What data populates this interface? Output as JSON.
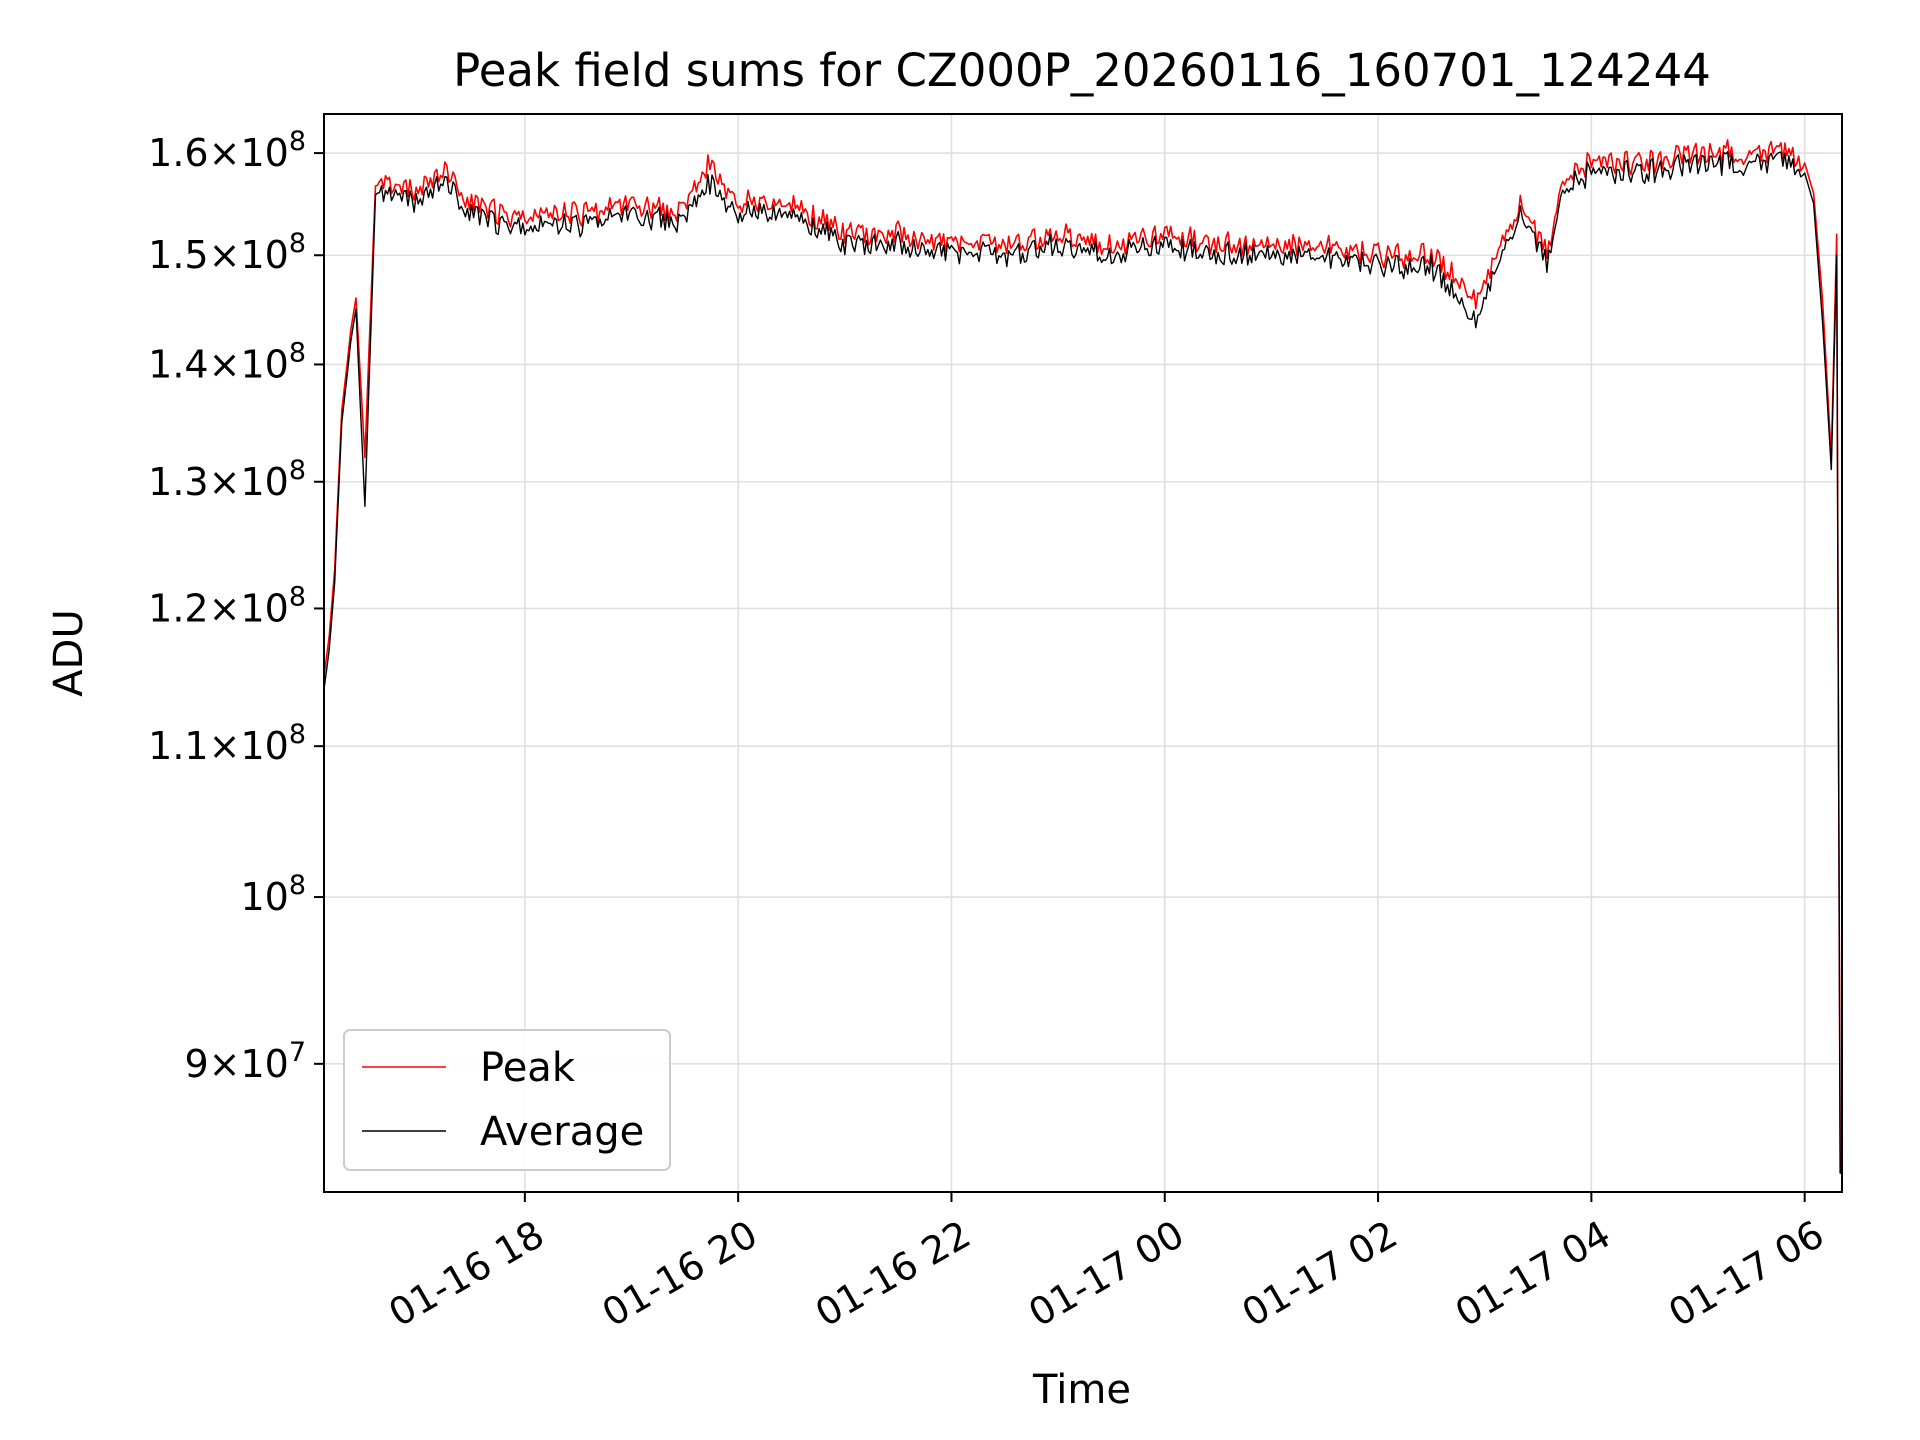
{
  "chart_data": {
    "type": "line",
    "title": "Peak field sums for CZ000P_20260116_160701_124244",
    "xlabel": "Time",
    "ylabel": "ADU",
    "y_scale": "log",
    "ylim": [
      83000000,
      164000000
    ],
    "xlim": [
      "2026-01-16 16:07",
      "2026-01-17 06:21"
    ],
    "grid": true,
    "legend_position": "lower left",
    "x_ticks": [
      {
        "value": "2026-01-16 18:00",
        "label": "01-16 18"
      },
      {
        "value": "2026-01-16 20:00",
        "label": "01-16 20"
      },
      {
        "value": "2026-01-16 22:00",
        "label": "01-16 22"
      },
      {
        "value": "2026-01-17 00:00",
        "label": "01-17 00"
      },
      {
        "value": "2026-01-17 02:00",
        "label": "01-17 02"
      },
      {
        "value": "2026-01-17 04:00",
        "label": "01-17 04"
      },
      {
        "value": "2026-01-17 06:00",
        "label": "01-17 06"
      }
    ],
    "y_ticks": [
      {
        "value": 90000000,
        "mant": "9",
        "exp": "7"
      },
      {
        "value": 100000000,
        "mant": "",
        "exp": "8"
      },
      {
        "value": 110000000,
        "mant": "1.1",
        "exp": "8"
      },
      {
        "value": 120000000,
        "mant": "1.2",
        "exp": "8"
      },
      {
        "value": 130000000,
        "mant": "1.3",
        "exp": "8"
      },
      {
        "value": 140000000,
        "mant": "1.4",
        "exp": "8"
      },
      {
        "value": 150000000,
        "mant": "1.5",
        "exp": "8"
      },
      {
        "value": 160000000,
        "mant": "1.6",
        "exp": "8"
      }
    ],
    "x": [
      "2026-01-16 16:07",
      "2026-01-16 16:10",
      "2026-01-16 16:13",
      "2026-01-16 16:17",
      "2026-01-16 16:20",
      "2026-01-16 16:22",
      "2026-01-16 16:25",
      "2026-01-16 16:30",
      "2026-01-16 16:36",
      "2026-01-16 16:45",
      "2026-01-16 17:00",
      "2026-01-16 17:15",
      "2026-01-16 17:30",
      "2026-01-16 17:45",
      "2026-01-16 18:00",
      "2026-01-16 18:30",
      "2026-01-16 19:00",
      "2026-01-16 19:30",
      "2026-01-16 19:43",
      "2026-01-16 20:00",
      "2026-01-16 20:30",
      "2026-01-16 21:00",
      "2026-01-16 21:30",
      "2026-01-16 22:00",
      "2026-01-16 22:30",
      "2026-01-16 23:00",
      "2026-01-16 23:30",
      "2026-01-17 00:00",
      "2026-01-17 00:30",
      "2026-01-17 01:00",
      "2026-01-17 01:30",
      "2026-01-17 02:00",
      "2026-01-17 02:30",
      "2026-01-17 02:55",
      "2026-01-17 03:10",
      "2026-01-17 03:20",
      "2026-01-17 03:35",
      "2026-01-17 03:45",
      "2026-01-17 04:00",
      "2026-01-17 04:30",
      "2026-01-17 05:00",
      "2026-01-17 05:30",
      "2026-01-17 05:50",
      "2026-01-17 06:00",
      "2026-01-17 06:05",
      "2026-01-17 06:10",
      "2026-01-17 06:15",
      "2026-01-17 06:18",
      "2026-01-17 06:20",
      "2026-01-17 06:21"
    ],
    "series": [
      {
        "name": "Peak",
        "color": "#ff0000",
        "values": [
          115000000,
          118000000,
          123000000,
          136000000,
          140000000,
          143000000,
          146000000,
          132000000,
          157000000,
          157000000,
          156000000,
          158000000,
          155000000,
          154000000,
          154000000,
          154000000,
          155000000,
          154000000,
          159000000,
          155000000,
          155000000,
          152000000,
          152000000,
          151000000,
          151000000,
          152000000,
          151000000,
          152000000,
          151000000,
          151000000,
          151000000,
          150000000,
          150000000,
          146000000,
          151000000,
          155000000,
          150000000,
          158000000,
          159000000,
          159000000,
          160000000,
          160000000,
          160000000,
          159000000,
          156000000,
          146000000,
          132000000,
          152000000,
          84000000,
          85000000
        ]
      },
      {
        "name": "Average",
        "color": "#000000",
        "values": [
          114000000,
          117000000,
          122000000,
          135000000,
          139000000,
          142000000,
          145000000,
          128000000,
          156000000,
          156000000,
          155000000,
          157000000,
          154000000,
          153000000,
          153000000,
          153000000,
          154000000,
          153000000,
          157000000,
          154000000,
          154000000,
          151000000,
          151000000,
          150000000,
          150000000,
          151000000,
          150000000,
          151000000,
          150000000,
          150000000,
          150000000,
          149000000,
          149000000,
          144000000,
          150000000,
          154000000,
          149000000,
          157000000,
          158000000,
          158000000,
          159000000,
          159000000,
          159000000,
          158000000,
          155000000,
          144000000,
          131000000,
          150000000,
          84000000,
          84000000
        ]
      }
    ]
  }
}
